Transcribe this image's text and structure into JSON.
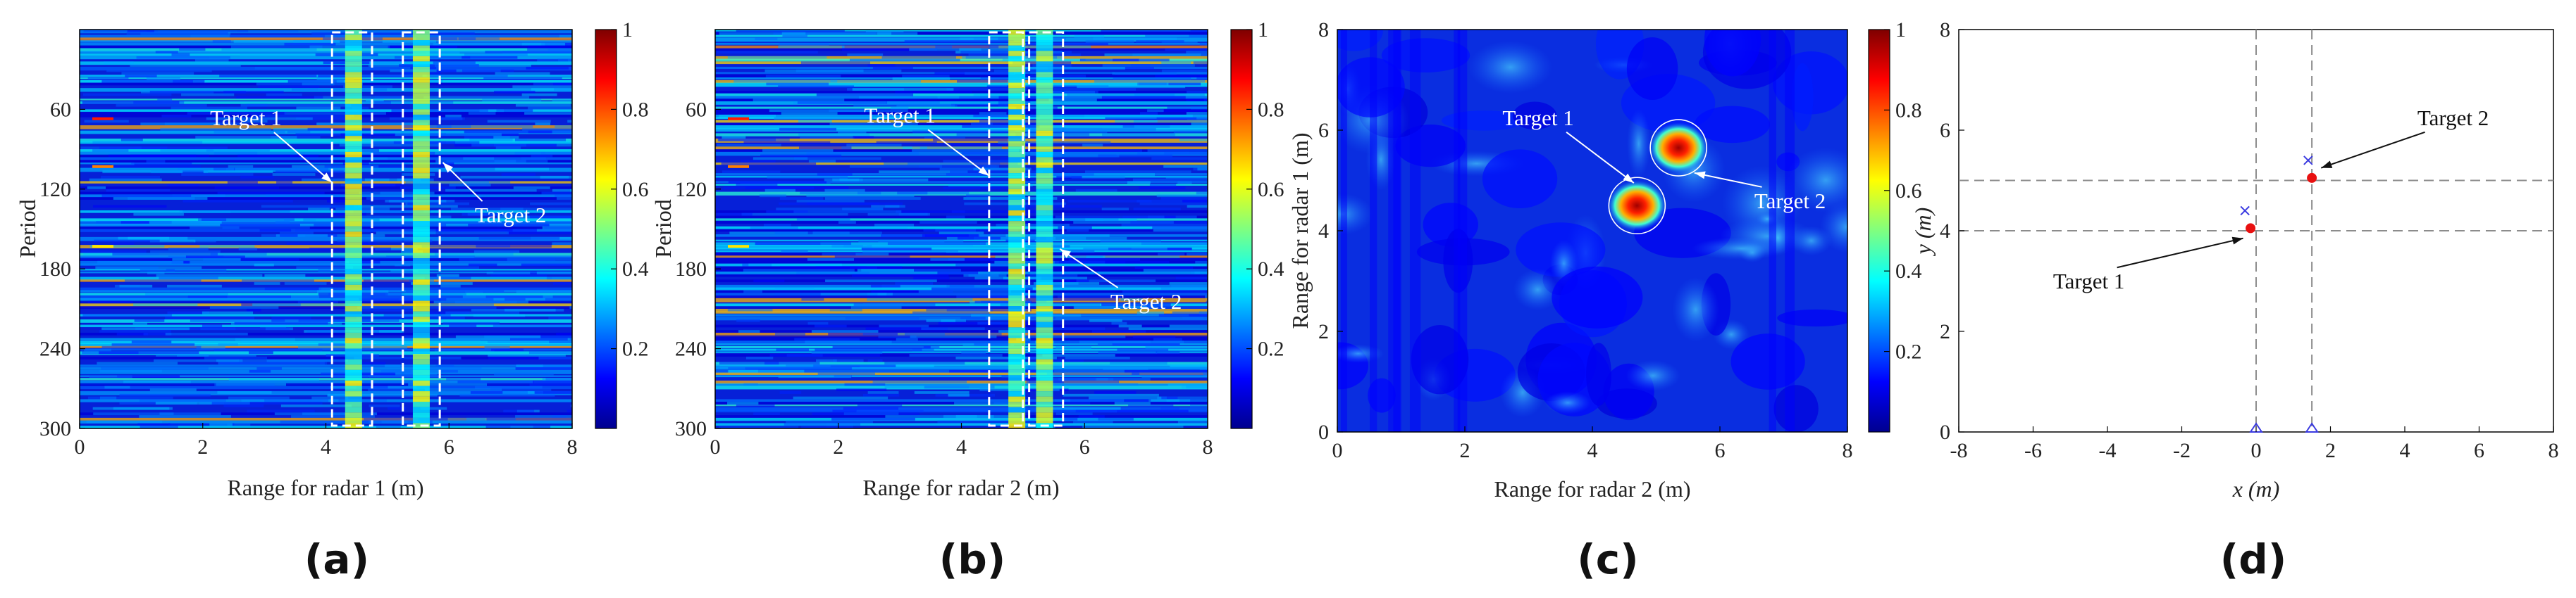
{
  "colors": {
    "colormap": [
      "#00008f",
      "#0000ff",
      "#007fff",
      "#00ffff",
      "#7fff7f",
      "#ffff00",
      "#ff7f00",
      "#ff0000",
      "#7f0000"
    ],
    "marker_red": "#e81010",
    "marker_blue": "#3a3ae0",
    "dashed_white": "#ffffff",
    "dashed_gray": "#8c8c8c"
  },
  "chart_data": [
    {
      "id": "a",
      "type": "heatmap",
      "caption": "(a)",
      "xlabel": "Range for radar 1 (m)",
      "ylabel": "Period",
      "xlim": [
        0,
        8
      ],
      "ylim": [
        300,
        0
      ],
      "xticks": [
        "0",
        "2",
        "4",
        "6",
        "8"
      ],
      "yticks": [
        "60",
        "120",
        "180",
        "240",
        "300"
      ],
      "colorbar": {
        "range": [
          0,
          1
        ],
        "ticks": [
          "0.2",
          "0.4",
          "0.6",
          "0.8",
          "1"
        ]
      },
      "target_columns_m": [
        4.45,
        5.55
      ],
      "boxes": [
        {
          "x": [
            4.1,
            4.75
          ]
        },
        {
          "x": [
            5.25,
            5.85
          ]
        }
      ],
      "annotations": [
        {
          "text": "Target 1",
          "x": 2.7,
          "y": 72,
          "arrow_to": [
            4.1,
            115
          ]
        },
        {
          "text": "Target 2",
          "x": 7.0,
          "y": 145,
          "arrow_to": [
            5.9,
            100
          ]
        }
      ]
    },
    {
      "id": "b",
      "type": "heatmap",
      "caption": "(b)",
      "xlabel": "Range for radar 2 (m)",
      "ylabel": "Period",
      "xlim": [
        0,
        8
      ],
      "ylim": [
        300,
        0
      ],
      "xticks": [
        "0",
        "2",
        "4",
        "6",
        "8"
      ],
      "yticks": [
        "60",
        "120",
        "180",
        "240",
        "300"
      ],
      "colorbar": {
        "range": [
          0,
          1
        ],
        "ticks": [
          "0.2",
          "0.4",
          "0.6",
          "0.8",
          "1"
        ]
      },
      "target_columns_m": [
        4.9,
        5.35
      ],
      "boxes": [
        {
          "x": [
            4.45,
            5.0
          ]
        },
        {
          "x": [
            5.1,
            5.65
          ]
        }
      ],
      "annotations": [
        {
          "text": "Target 1",
          "x": 3.0,
          "y": 70,
          "arrow_to": [
            4.45,
            110
          ]
        },
        {
          "text": "Target 2",
          "x": 7.0,
          "y": 210,
          "arrow_to": [
            5.6,
            165
          ]
        }
      ]
    },
    {
      "id": "c",
      "type": "heatmap",
      "caption": "(c)",
      "xlabel": "Range for radar 2 (m)",
      "ylabel": "Range for radar 1 (m)",
      "xlim": [
        0,
        8
      ],
      "ylim": [
        0,
        8
      ],
      "xticks": [
        "0",
        "2",
        "4",
        "6",
        "8"
      ],
      "yticks": [
        "0",
        "2",
        "4",
        "6",
        "8"
      ],
      "colorbar": {
        "range": [
          0,
          1
        ],
        "ticks": [
          "0.2",
          "0.4",
          "0.6",
          "0.8",
          "1"
        ]
      },
      "peaks": [
        {
          "x": 4.7,
          "y": 4.5
        },
        {
          "x": 5.35,
          "y": 5.65
        }
      ],
      "annotations": [
        {
          "text": "Target 1",
          "x": 3.15,
          "y": 6.1,
          "arrow_to": [
            4.65,
            4.95
          ]
        },
        {
          "text": "Target 2",
          "x": 7.1,
          "y": 4.45,
          "arrow_to": [
            5.6,
            5.15
          ]
        }
      ]
    },
    {
      "id": "d",
      "type": "scatter",
      "caption": "(d)",
      "xlabel": "x (m)",
      "ylabel": "y (m)",
      "xlim": [
        -8,
        8
      ],
      "ylim": [
        0,
        8
      ],
      "xticks": [
        "-8",
        "-6",
        "-4",
        "-2",
        "0",
        "2",
        "4",
        "6",
        "8"
      ],
      "yticks": [
        "0",
        "2",
        "4",
        "6",
        "8"
      ],
      "dashed_lines": {
        "x": [
          0,
          1.5
        ],
        "y": [
          4,
          5
        ]
      },
      "estimated_targets": [
        {
          "x": -0.15,
          "y": 4.05
        },
        {
          "x": 1.5,
          "y": 5.05
        }
      ],
      "true_targets": [
        {
          "x": -0.3,
          "y": 4.4
        },
        {
          "x": 1.4,
          "y": 5.4
        }
      ],
      "radars": [
        {
          "x": 0,
          "y": 0
        },
        {
          "x": 1.5,
          "y": 0
        }
      ],
      "annotations": [
        {
          "text": "Target 1",
          "x": -4.5,
          "y": 2.85,
          "arrow_to": [
            -0.35,
            3.85
          ]
        },
        {
          "text": "Target 2",
          "x": 5.3,
          "y": 6.1,
          "arrow_to": [
            1.75,
            5.25
          ]
        }
      ]
    }
  ]
}
